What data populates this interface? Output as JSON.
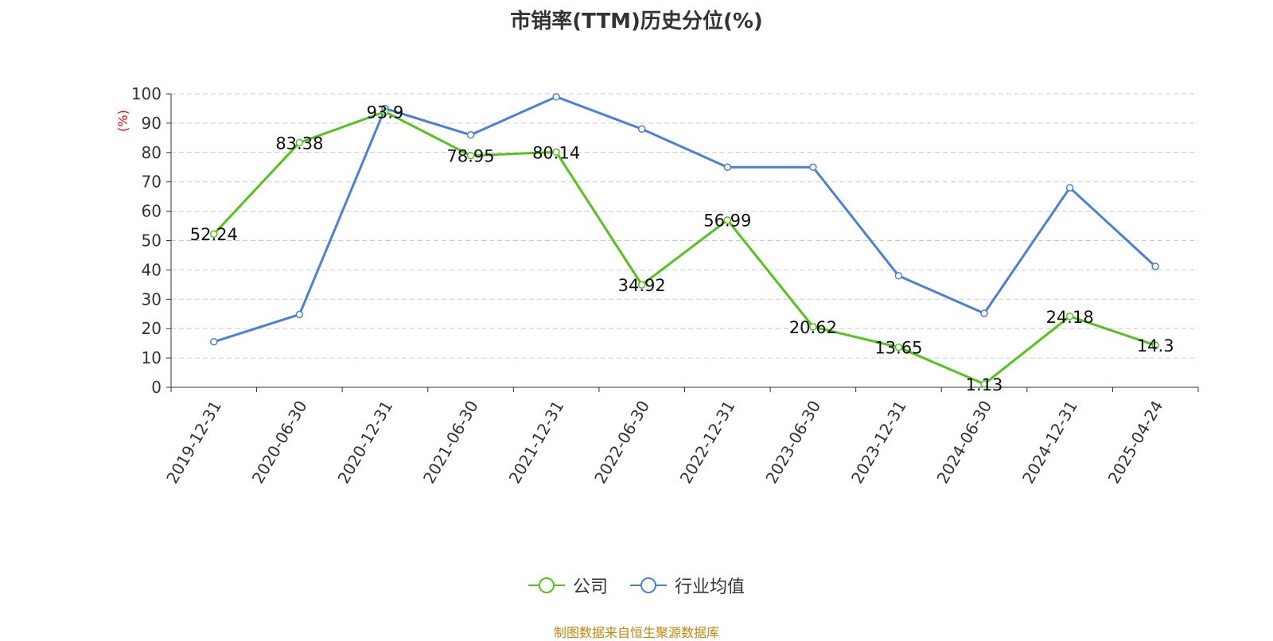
{
  "chart_data": {
    "type": "line",
    "title": "市销率(TTM)历史分位(%)",
    "ylabel": "(%)",
    "ylim": [
      0,
      100
    ],
    "yticks": [
      0,
      10,
      20,
      30,
      40,
      50,
      60,
      70,
      80,
      90,
      100
    ],
    "categories": [
      "2019-12-31",
      "2020-06-30",
      "2020-12-31",
      "2021-06-30",
      "2021-12-31",
      "2022-06-30",
      "2022-12-31",
      "2023-06-30",
      "2023-12-31",
      "2024-06-30",
      "2024-12-31",
      "2025-04-24"
    ],
    "grid": true,
    "legend_position": "bottom",
    "series": [
      {
        "name": "公司",
        "color": "#52c41a",
        "labeled": true,
        "values": [
          52.24,
          83.38,
          93.9,
          78.95,
          80.14,
          34.92,
          56.99,
          20.62,
          13.65,
          1.13,
          24.18,
          14.3
        ],
        "labels": [
          "52.24",
          "83.38",
          "93.9",
          "78.95",
          "80.14",
          "34.92",
          "56.99",
          "20.62",
          "13.65",
          "1.13",
          "24.18",
          "14.3"
        ]
      },
      {
        "name": "行业均值",
        "color": "#4a7fdb",
        "labeled": false,
        "values": [
          15.5,
          24.8,
          95,
          86,
          99,
          88,
          75,
          75,
          38,
          25.2,
          68,
          41.2
        ]
      }
    ],
    "source": "制图数据来自恒生聚源数据库"
  }
}
